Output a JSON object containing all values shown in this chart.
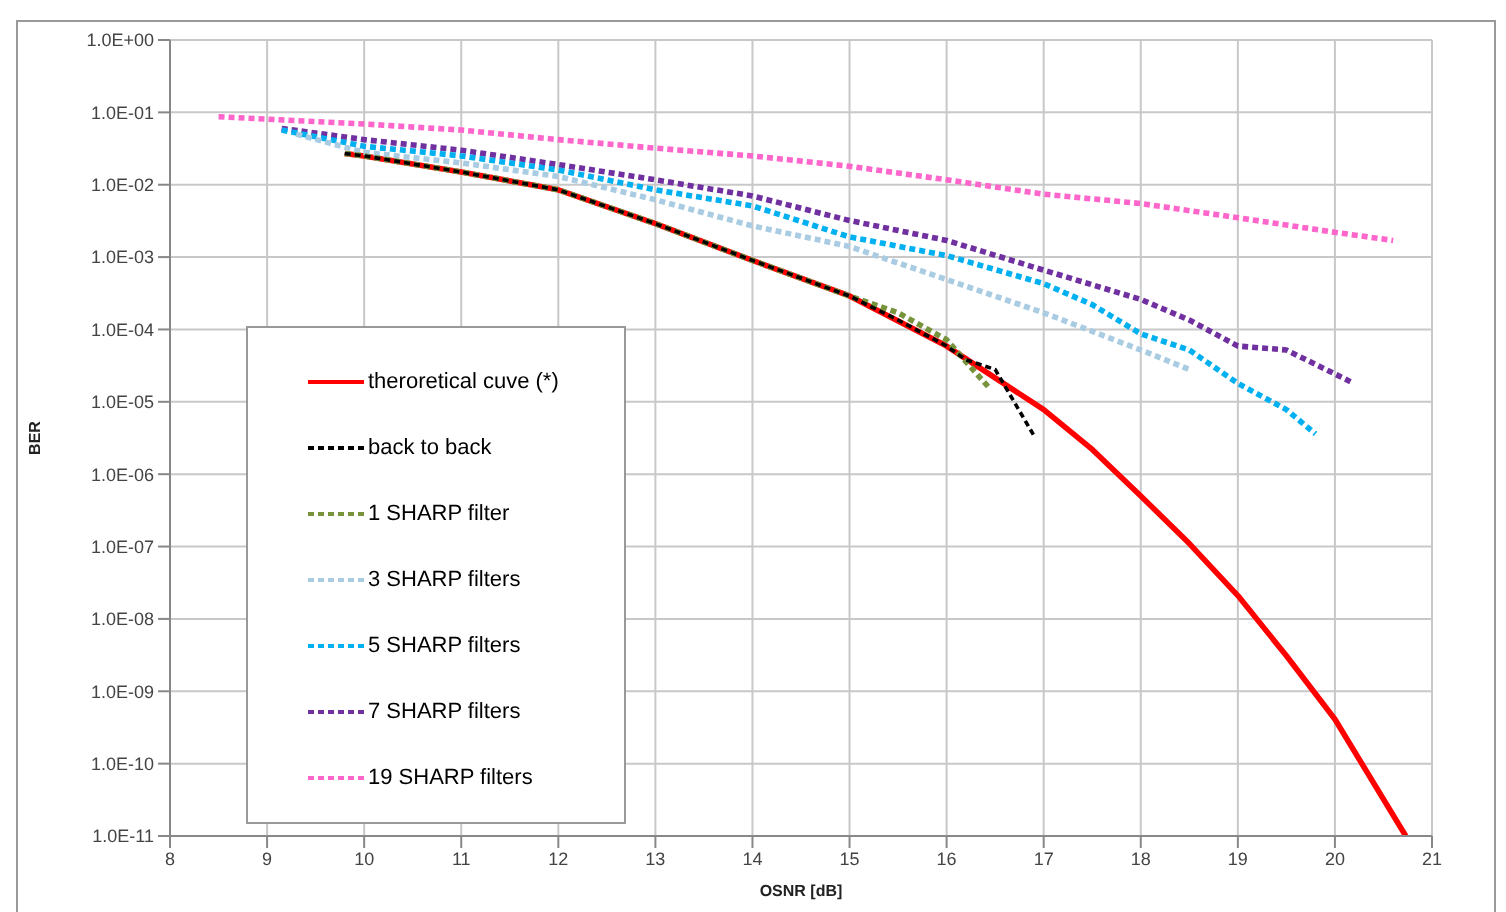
{
  "chart_data": {
    "type": "line",
    "xlabel": "OSNR [dB]",
    "ylabel": "BER",
    "log": "y",
    "grid": true,
    "legend": "bottom left",
    "marker": "none",
    "xlim": [
      8,
      21
    ],
    "xticks": [
      8,
      9,
      10,
      11,
      12,
      13,
      14,
      15,
      16,
      17,
      18,
      19,
      20,
      21
    ],
    "ylim": [
      1e-11,
      1
    ],
    "yticks": [
      {
        "value": 1e-11,
        "label": "1.0E-11"
      },
      {
        "value": 1e-10,
        "label": "1.0E-10"
      },
      {
        "value": 1e-09,
        "label": "1.0E-09"
      },
      {
        "value": 1e-08,
        "label": "1.0E-08"
      },
      {
        "value": 1e-07,
        "label": "1.0E-07"
      },
      {
        "value": 1e-06,
        "label": "1.0E-06"
      },
      {
        "value": 1e-05,
        "label": "1.0E-05"
      },
      {
        "value": 0.0001,
        "label": "1.0E-04"
      },
      {
        "value": 0.001,
        "label": "1.0E-03"
      },
      {
        "value": 0.01,
        "label": "1.0E-02"
      },
      {
        "value": 0.1,
        "label": "1.0E-01"
      },
      {
        "value": 1,
        "label": "1.0E+00"
      }
    ],
    "series": [
      {
        "name": "theroretical cuve (*)",
        "color": "#ff0000",
        "line_style": "solid",
        "x": [
          9.8,
          10,
          11,
          12,
          13,
          14,
          15,
          16,
          17,
          17.5,
          18,
          18.5,
          19,
          19.5,
          20,
          20.73
        ],
        "values": [
          0.027,
          0.025,
          0.015,
          0.0085,
          0.0029,
          0.0009,
          0.00029,
          5.9e-05,
          7.8e-06,
          2.2e-06,
          5e-07,
          1.1e-07,
          2.1e-08,
          3.1e-09,
          4.1e-10,
          1e-11
        ]
      },
      {
        "name": "back to back",
        "color": "#000000",
        "line_style": "dashed",
        "x": [
          9.8,
          10,
          11,
          12,
          13,
          14,
          15,
          15.5,
          16,
          16.2,
          16.5,
          16.9
        ],
        "values": [
          0.027,
          0.025,
          0.015,
          0.0085,
          0.0029,
          0.0009,
          0.00029,
          0.000135,
          5.9e-05,
          3.8e-05,
          2.8e-05,
          3.4e-06
        ]
      },
      {
        "name": "1 SHARP filter",
        "color": "#77933c",
        "line_style": "dashed",
        "x": [
          9.8,
          10,
          11,
          12,
          13,
          14,
          15,
          15.5,
          16,
          16.45
        ],
        "values": [
          0.027,
          0.025,
          0.015,
          0.0085,
          0.0029,
          0.0009,
          0.00029,
          0.00017,
          7.2e-05,
          1.5e-05
        ]
      },
      {
        "name": "3 SHARP filters",
        "color": "#a9cce3",
        "line_style": "dashed",
        "x": [
          9.3,
          10,
          11,
          12,
          13,
          14,
          15,
          16,
          17,
          18,
          18.5
        ],
        "values": [
          0.05,
          0.028,
          0.02,
          0.013,
          0.0062,
          0.0027,
          0.0014,
          0.00049,
          0.00017,
          5.2e-05,
          2.8e-05
        ]
      },
      {
        "name": "5 SHARP filters",
        "color": "#00b0f0",
        "line_style": "dashed",
        "x": [
          9.15,
          10,
          11,
          12,
          13,
          14,
          15,
          16,
          17,
          17.5,
          18,
          18.5,
          19,
          19.5,
          19.8
        ],
        "values": [
          0.057,
          0.034,
          0.025,
          0.016,
          0.0085,
          0.0051,
          0.0019,
          0.00105,
          0.00043,
          0.00022,
          8.7e-05,
          5.2e-05,
          1.8e-05,
          7.8e-06,
          3.6e-06
        ]
      },
      {
        "name": "7 SHARP filters",
        "color": "#7030a0",
        "line_style": "dashed",
        "x": [
          9.15,
          10,
          11,
          12,
          13,
          14,
          15,
          16,
          17,
          18,
          18.5,
          19,
          19.5,
          20.16
        ],
        "values": [
          0.06,
          0.042,
          0.03,
          0.019,
          0.0117,
          0.007,
          0.0032,
          0.0017,
          0.00066,
          0.00026,
          0.000135,
          5.9e-05,
          5.2e-05,
          1.9e-05
        ]
      },
      {
        "name": "19 SHARP filters",
        "color": "#ff66cc",
        "line_style": "dashed",
        "x": [
          8.5,
          10,
          11,
          12,
          13,
          14,
          15,
          16,
          17,
          18,
          19,
          20,
          20.6
        ],
        "values": [
          0.087,
          0.069,
          0.057,
          0.042,
          0.032,
          0.025,
          0.018,
          0.0117,
          0.0074,
          0.0055,
          0.0035,
          0.0022,
          0.0017
        ]
      }
    ]
  }
}
